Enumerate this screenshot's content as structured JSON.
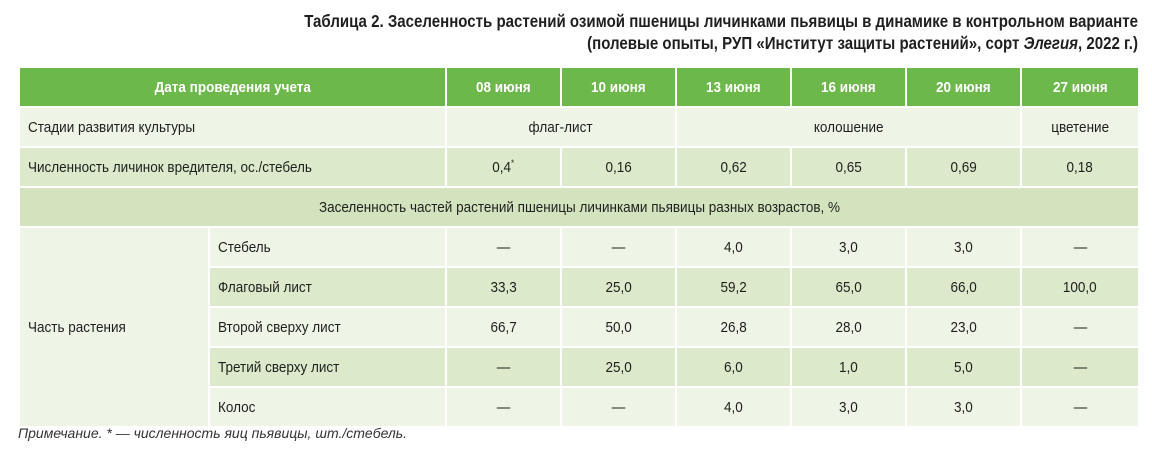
{
  "caption": {
    "line1": "Таблица 2. Заселенность растений озимой пшеницы личинками пьявицы в динамике в контрольном варианте",
    "line2_prefix": "(полевые опыты, РУП «Институт защиты растений», сорт ",
    "line2_italic": "Элегия",
    "line2_suffix": ", 2022 г.)"
  },
  "header": {
    "first_col": "Дата проведения учета",
    "dates": [
      "08 июня",
      "10 июня",
      "13 июня",
      "16 июня",
      "20 июня",
      "27 июня"
    ]
  },
  "stages_row": {
    "label": "Стадии развития культуры",
    "flag_leaf": "флаг-лист",
    "heading": "колошение",
    "flowering": "цветение"
  },
  "count_row": {
    "label": "Численность личинок вредителя, ос./стебель",
    "first_value": "0,4",
    "first_mark": "*",
    "values": [
      "0,16",
      "0,62",
      "0,65",
      "0,69",
      "0,18"
    ]
  },
  "section_title": "Заселенность частей растений пшеницы личинками пьявицы разных возрастов, %",
  "plant_part_label": "Часть растения",
  "parts": [
    {
      "name": "Стебель",
      "values": [
        "—",
        "—",
        "4,0",
        "3,0",
        "3,0",
        "—"
      ]
    },
    {
      "name": "Флаговый лист",
      "values": [
        "33,3",
        "25,0",
        "59,2",
        "65,0",
        "66,0",
        "100,0"
      ]
    },
    {
      "name": "Второй сверху лист",
      "values": [
        "66,7",
        "50,0",
        "26,8",
        "28,0",
        "23,0",
        "—"
      ]
    },
    {
      "name": "Третий сверху лист",
      "values": [
        "—",
        "25,0",
        "6,0",
        "1,0",
        "5,0",
        "—"
      ]
    },
    {
      "name": "Колос",
      "values": [
        "—",
        "—",
        "4,0",
        "3,0",
        "3,0",
        "—"
      ]
    }
  ],
  "note": "Примечание. * — численность яиц пьявицы, шт./стебель.",
  "colors": {
    "header_green": "#6db84a",
    "row_light": "#eef4e6",
    "row_mid": "#dde9cb"
  }
}
